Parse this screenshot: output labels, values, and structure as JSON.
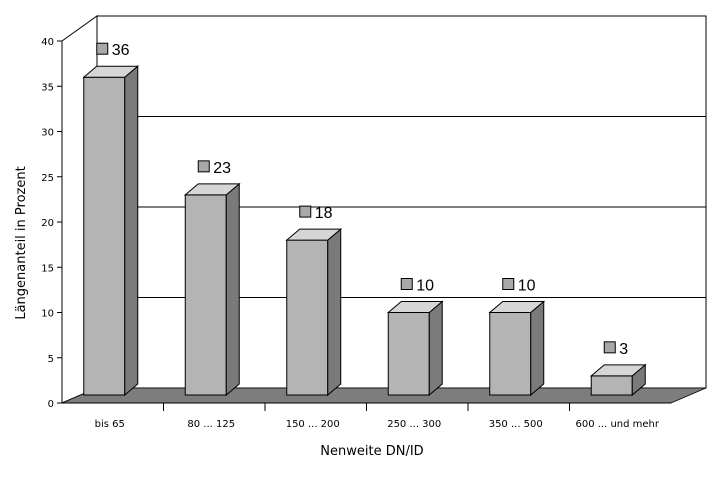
{
  "chart_data": {
    "type": "bar",
    "categories": [
      "bis 65",
      "80 ... 125",
      "150 ... 200",
      "250 ... 300",
      "350 ... 500",
      "600 ... und mehr"
    ],
    "values": [
      36,
      23,
      18,
      10,
      10,
      3
    ],
    "data_labels": [
      "36",
      "23",
      "18",
      "10",
      "10",
      "3"
    ],
    "xlabel": "Nenweite DN/ID",
    "ylabel": "Längenanteil in Prozent",
    "ylim": [
      0,
      40
    ],
    "yticks": [
      "0",
      "5",
      "10",
      "15",
      "20",
      "25",
      "30",
      "35",
      "40"
    ],
    "grid": true,
    "style": "3d"
  },
  "colors": {
    "bar_front": "#b4b4b4",
    "bar_side": "#7a7a7a",
    "bar_top": "#d6d6d6",
    "floor": "#7d7d7d",
    "marker": "#a8a8a8"
  }
}
